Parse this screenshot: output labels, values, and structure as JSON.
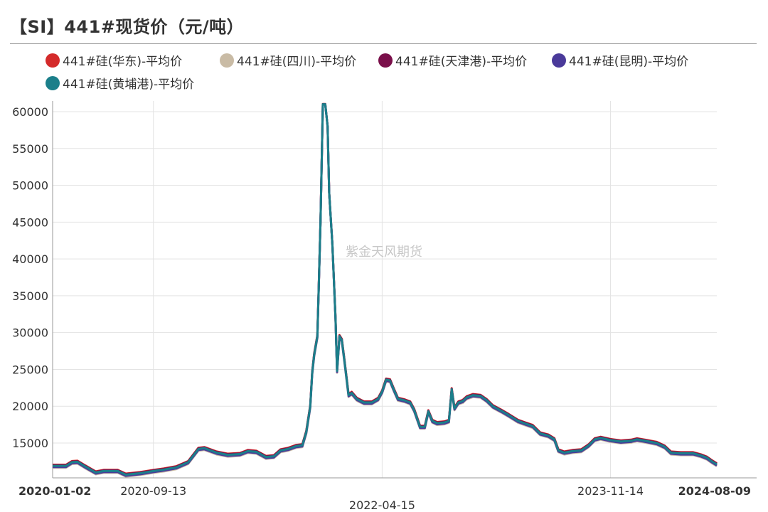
{
  "chart_data": {
    "type": "line",
    "title": "【SI】441#现货价（元/吨）",
    "watermark": "紫金天风期货",
    "ylim": [
      11000,
      61000
    ],
    "yticks": [
      15000,
      20000,
      25000,
      30000,
      35000,
      40000,
      45000,
      50000,
      55000,
      60000
    ],
    "xlim": [
      "2020-01-02",
      "2024-08-09"
    ],
    "xticks": [
      {
        "date": "2020-01-02",
        "label": "2020-01-02",
        "bold": true
      },
      {
        "date": "2020-09-13",
        "label": "2020-09-13",
        "bold": false
      },
      {
        "date": "2022-04-15",
        "label": "2022-04-15",
        "bold": false
      },
      {
        "date": "2023-11-14",
        "label": "2023-11-14",
        "bold": false
      },
      {
        "date": "2024-08-09",
        "label": "2024-08-09",
        "bold": true
      }
    ],
    "grid": true,
    "legend_position": "top",
    "series": [
      {
        "name": "441#硅(华东)-平均价",
        "color": "#d42a2a",
        "offset": 150
      },
      {
        "name": "441#硅(四川)-平均价",
        "color": "#c9bba5",
        "offset": -250
      },
      {
        "name": "441#硅(天津港)-平均价",
        "color": "#7a0f4a",
        "offset": 80
      },
      {
        "name": "441#硅(昆明)-平均价",
        "color": "#4a3a9a",
        "offset": -150
      },
      {
        "name": "441#硅(黄埔港)-平均价",
        "color": "#1b7f8a",
        "offset": 0
      }
    ],
    "base_points": [
      [
        "2020-01-02",
        11900
      ],
      [
        "2020-02-05",
        11900
      ],
      [
        "2020-02-20",
        12400
      ],
      [
        "2020-03-05",
        12450
      ],
      [
        "2020-03-25",
        11800
      ],
      [
        "2020-04-20",
        11000
      ],
      [
        "2020-05-10",
        11200
      ],
      [
        "2020-06-15",
        11200
      ],
      [
        "2020-07-05",
        10700
      ],
      [
        "2020-08-10",
        10900
      ],
      [
        "2020-09-13",
        11200
      ],
      [
        "2020-10-10",
        11400
      ],
      [
        "2020-11-10",
        11700
      ],
      [
        "2020-12-10",
        12400
      ],
      [
        "2021-01-05",
        14200
      ],
      [
        "2021-01-20",
        14300
      ],
      [
        "2021-02-20",
        13700
      ],
      [
        "2021-03-20",
        13400
      ],
      [
        "2021-04-20",
        13500
      ],
      [
        "2021-05-10",
        13900
      ],
      [
        "2021-06-01",
        13800
      ],
      [
        "2021-06-25",
        13100
      ],
      [
        "2021-07-15",
        13200
      ],
      [
        "2021-08-01",
        14000
      ],
      [
        "2021-08-20",
        14200
      ],
      [
        "2021-09-10",
        14600
      ],
      [
        "2021-09-25",
        14700
      ],
      [
        "2021-10-05",
        16500
      ],
      [
        "2021-10-15",
        20000
      ],
      [
        "2021-10-20",
        24500
      ],
      [
        "2021-10-25",
        27000
      ],
      [
        "2021-11-02",
        29500
      ],
      [
        "2021-11-05",
        35000
      ],
      [
        "2021-11-10",
        45000
      ],
      [
        "2021-11-16",
        61000
      ],
      [
        "2021-11-22",
        61000
      ],
      [
        "2021-11-28",
        58000
      ],
      [
        "2021-12-02",
        49000
      ],
      [
        "2021-12-10",
        42000
      ],
      [
        "2021-12-18",
        32000
      ],
      [
        "2021-12-22",
        24800
      ],
      [
        "2021-12-28",
        29500
      ],
      [
        "2022-01-03",
        29000
      ],
      [
        "2022-01-10",
        26000
      ],
      [
        "2022-01-20",
        21500
      ],
      [
        "2022-01-28",
        21800
      ],
      [
        "2022-02-10",
        21000
      ],
      [
        "2022-02-28",
        20500
      ],
      [
        "2022-03-20",
        20500
      ],
      [
        "2022-04-05",
        21000
      ],
      [
        "2022-04-15",
        22000
      ],
      [
        "2022-04-25",
        23600
      ],
      [
        "2022-05-05",
        23500
      ],
      [
        "2022-05-15",
        22200
      ],
      [
        "2022-05-25",
        21000
      ],
      [
        "2022-06-10",
        20800
      ],
      [
        "2022-06-25",
        20500
      ],
      [
        "2022-07-05",
        19500
      ],
      [
        "2022-07-20",
        17200
      ],
      [
        "2022-08-01",
        17200
      ],
      [
        "2022-08-10",
        19300
      ],
      [
        "2022-08-20",
        18000
      ],
      [
        "2022-09-01",
        17700
      ],
      [
        "2022-09-20",
        17800
      ],
      [
        "2022-10-01",
        18000
      ],
      [
        "2022-10-08",
        22300
      ],
      [
        "2022-10-15",
        19700
      ],
      [
        "2022-10-25",
        20500
      ],
      [
        "2022-11-05",
        20700
      ],
      [
        "2022-11-15",
        21200
      ],
      [
        "2022-12-01",
        21500
      ],
      [
        "2022-12-20",
        21400
      ],
      [
        "2023-01-05",
        20800
      ],
      [
        "2023-01-20",
        20000
      ],
      [
        "2023-02-10",
        19400
      ],
      [
        "2023-03-01",
        18800
      ],
      [
        "2023-03-25",
        18000
      ],
      [
        "2023-04-15",
        17600
      ],
      [
        "2023-05-01",
        17300
      ],
      [
        "2023-05-20",
        16300
      ],
      [
        "2023-06-10",
        16000
      ],
      [
        "2023-06-25",
        15500
      ],
      [
        "2023-07-05",
        14000
      ],
      [
        "2023-07-20",
        13700
      ],
      [
        "2023-08-10",
        13900
      ],
      [
        "2023-09-01",
        14000
      ],
      [
        "2023-09-20",
        14700
      ],
      [
        "2023-10-05",
        15500
      ],
      [
        "2023-10-20",
        15700
      ],
      [
        "2023-11-14",
        15400
      ],
      [
        "2023-12-10",
        15200
      ],
      [
        "2024-01-05",
        15300
      ],
      [
        "2024-01-20",
        15500
      ],
      [
        "2024-02-10",
        15300
      ],
      [
        "2024-03-10",
        15000
      ],
      [
        "2024-03-30",
        14500
      ],
      [
        "2024-04-15",
        13700
      ],
      [
        "2024-05-10",
        13600
      ],
      [
        "2024-06-10",
        13600
      ],
      [
        "2024-07-01",
        13300
      ],
      [
        "2024-07-15",
        13000
      ],
      [
        "2024-07-28",
        12500
      ],
      [
        "2024-08-09",
        12100
      ]
    ]
  }
}
